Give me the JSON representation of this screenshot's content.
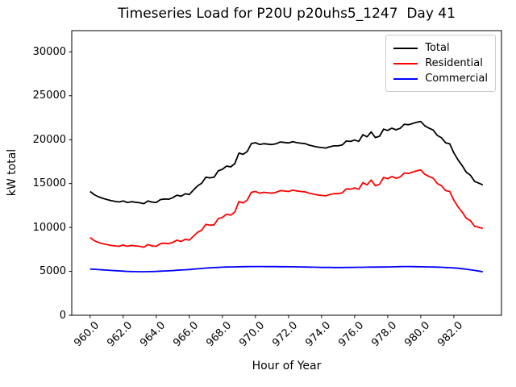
{
  "chart_data": {
    "type": "line",
    "title": "Timeseries Load for P20U p20uhs5_1247  Day 41",
    "xlabel": "Hour of Year",
    "ylabel": "kW total",
    "xlim": [
      958.89,
      984.88
    ],
    "ylim": [
      0,
      32416
    ],
    "grid": false,
    "legend_position": "upper right",
    "x_start": 960.0,
    "x_step": 0.25,
    "xticks": [
      960.0,
      962.0,
      964.0,
      966.0,
      968.0,
      970.0,
      972.0,
      974.0,
      976.0,
      978.0,
      980.0,
      982.0
    ],
    "xtick_labels": [
      "960.0",
      "962.0",
      "964.0",
      "966.0",
      "968.0",
      "970.0",
      "972.0",
      "974.0",
      "976.0",
      "978.0",
      "980.0",
      "982.0"
    ],
    "xtick_rotation_deg": 45,
    "yticks": [
      0,
      5000,
      10000,
      15000,
      20000,
      25000,
      30000
    ],
    "ytick_labels": [
      "0",
      "5000",
      "10000",
      "15000",
      "20000",
      "25000",
      "30000"
    ],
    "series": [
      {
        "name": "Total",
        "color": "#000000",
        "values": [
          14100,
          13730,
          13500,
          13320,
          13190,
          13060,
          12980,
          12900,
          13020,
          12850,
          12930,
          12870,
          12810,
          12710,
          13020,
          12880,
          12850,
          13170,
          13240,
          13210,
          13390,
          13670,
          13550,
          13830,
          13760,
          14250,
          14740,
          15030,
          15720,
          15650,
          15730,
          16450,
          16620,
          16990,
          16900,
          17260,
          18470,
          18330,
          18640,
          19550,
          19650,
          19450,
          19545,
          19490,
          19440,
          19535,
          19730,
          19675,
          19620,
          19765,
          19660,
          19600,
          19540,
          19380,
          19270,
          19160,
          19100,
          19050,
          19195,
          19290,
          19290,
          19390,
          19845,
          19800,
          19955,
          19810,
          20565,
          20320,
          20880,
          20235,
          20390,
          21195,
          21050,
          21310,
          21120,
          21290,
          21750,
          21695,
          21840,
          21980,
          22070,
          21560,
          21300,
          21090,
          20480,
          20210,
          19640,
          19520,
          18490,
          17700,
          17050,
          16300,
          15950,
          15250,
          15050,
          14850
        ]
      },
      {
        "name": "Residential",
        "color": "#ff0000",
        "values": [
          8850,
          8500,
          8300,
          8150,
          8050,
          7950,
          7900,
          7850,
          8000,
          7850,
          7950,
          7900,
          7850,
          7750,
          8050,
          7900,
          7850,
          8150,
          8200,
          8150,
          8300,
          8550,
          8400,
          8650,
          8550,
          9000,
          9450,
          9700,
          10350,
          10250,
          10300,
          11000,
          11150,
          11500,
          11400,
          11750,
          12950,
          12800,
          13100,
          14000,
          14100,
          13900,
          14000,
          13950,
          13900,
          14000,
          14200,
          14150,
          14100,
          14250,
          14150,
          14100,
          14050,
          13900,
          13800,
          13700,
          13650,
          13600,
          13750,
          13850,
          13850,
          13950,
          14400,
          14350,
          14500,
          14350,
          15100,
          14850,
          15400,
          14750,
          14900,
          15700,
          15550,
          15800,
          15600,
          15750,
          16200,
          16150,
          16300,
          16450,
          16550,
          16050,
          15800,
          15600,
          15000,
          14750,
          14200,
          14100,
          13100,
          12350,
          11750,
          11060,
          10770,
          10140,
          10020,
          9900
        ]
      },
      {
        "name": "Commercial",
        "color": "#0000ff",
        "values": [
          5250,
          5230,
          5200,
          5170,
          5140,
          5110,
          5080,
          5050,
          5020,
          5000,
          4980,
          4970,
          4960,
          4960,
          4970,
          4980,
          5000,
          5020,
          5040,
          5060,
          5090,
          5120,
          5150,
          5180,
          5210,
          5250,
          5290,
          5330,
          5370,
          5400,
          5430,
          5450,
          5470,
          5490,
          5500,
          5510,
          5520,
          5530,
          5540,
          5550,
          5550,
          5550,
          5545,
          5540,
          5540,
          5535,
          5530,
          5525,
          5520,
          5515,
          5510,
          5500,
          5490,
          5480,
          5470,
          5460,
          5450,
          5450,
          5445,
          5440,
          5440,
          5440,
          5445,
          5450,
          5455,
          5460,
          5465,
          5470,
          5480,
          5485,
          5490,
          5495,
          5500,
          5510,
          5520,
          5540,
          5550,
          5545,
          5540,
          5530,
          5520,
          5510,
          5500,
          5490,
          5480,
          5460,
          5440,
          5420,
          5390,
          5350,
          5300,
          5240,
          5180,
          5110,
          5030,
          4950
        ]
      }
    ]
  }
}
